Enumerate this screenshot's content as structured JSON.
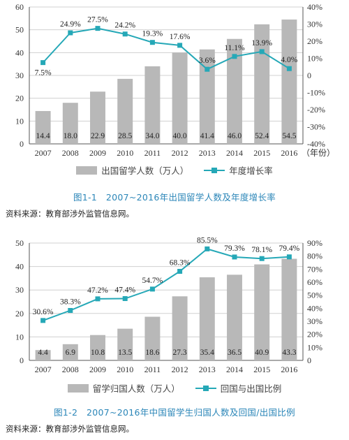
{
  "chart_data": [
    {
      "type": "bar",
      "categories": [
        "2007",
        "2008",
        "2009",
        "2010",
        "2011",
        "2012",
        "2013",
        "2014",
        "2015",
        "2016"
      ],
      "x_suffix": "（年份）",
      "series": [
        {
          "name": "出国留学人数（万人）",
          "type": "bar",
          "axis": "left",
          "values": [
            14.4,
            18.0,
            22.9,
            28.5,
            34.0,
            40.0,
            41.4,
            46.0,
            52.4,
            54.5
          ],
          "labels": [
            "14.4",
            "18.0",
            "22.9",
            "28.5",
            "34.0",
            "40.0",
            "41.4",
            "46.0",
            "52.4",
            "54.5"
          ]
        },
        {
          "name": "年度增长率",
          "type": "line",
          "axis": "right",
          "values": [
            7.5,
            24.9,
            27.5,
            24.2,
            19.3,
            17.6,
            3.6,
            11.1,
            13.9,
            4.0
          ],
          "labels": [
            "7.5%",
            "24.9%",
            "27.5%",
            "24.2%",
            "19.3%",
            "17.6%",
            "3.6%",
            "11.1%",
            "13.9%",
            "4.0%"
          ]
        }
      ],
      "ylim_left": [
        0,
        60
      ],
      "yticks_left": [
        "0",
        "10",
        "20",
        "30",
        "40",
        "50",
        "60"
      ],
      "ylim_right": [
        -40,
        40
      ],
      "yticks_right": [
        "-40%",
        "-30%",
        "-20%",
        "-10%",
        "0",
        "10%",
        "20%",
        "30%",
        "40%"
      ],
      "grid": true,
      "legend": "bottom",
      "caption": "图1-1　2007~2016年出国留学人数及年度增长率",
      "source": "资料来源：教育部涉外监管信息网。"
    },
    {
      "type": "bar",
      "categories": [
        "2007",
        "2008",
        "2009",
        "2010",
        "2011",
        "2012",
        "2013",
        "2014",
        "2015",
        "2016"
      ],
      "series": [
        {
          "name": "留学归国人数（万人）",
          "type": "bar",
          "axis": "left",
          "values": [
            4.4,
            6.9,
            10.8,
            13.5,
            18.6,
            27.3,
            35.4,
            36.5,
            40.9,
            43.3
          ],
          "labels": [
            "4.4",
            "6.9",
            "10.8",
            "13.5",
            "18.6",
            "27.3",
            "35.4",
            "36.5",
            "40.9",
            "43.3"
          ]
        },
        {
          "name": "回国与出国比例",
          "type": "line",
          "axis": "right",
          "values": [
            30.6,
            38.3,
            47.2,
            47.4,
            54.7,
            68.3,
            85.5,
            79.3,
            78.1,
            79.4
          ],
          "labels": [
            "30.6%",
            "38.3%",
            "47.2%",
            "47.4%",
            "54.7%",
            "68.3%",
            "85.5%",
            "79.3%",
            "78.1%",
            "79.4%"
          ]
        }
      ],
      "ylim_left": [
        0,
        50
      ],
      "yticks_left": [
        "0",
        "10",
        "20",
        "30",
        "40",
        "50"
      ],
      "ylim_right": [
        0,
        90
      ],
      "yticks_right": [
        "0",
        "10%",
        "20%",
        "30%",
        "40%",
        "50%",
        "60%",
        "70%",
        "80%",
        "90%"
      ],
      "grid": true,
      "legend": "bottom",
      "caption": "图1-2　2007~2016年中国留学生归国人数及回国/出国比例",
      "source": "资料来源：教育部涉外监管信息网。"
    }
  ],
  "colors": {
    "bar": "#b8b8b8",
    "line": "#25a8b7",
    "caption": "#2b86b8",
    "grid": "#d0d0d0"
  }
}
